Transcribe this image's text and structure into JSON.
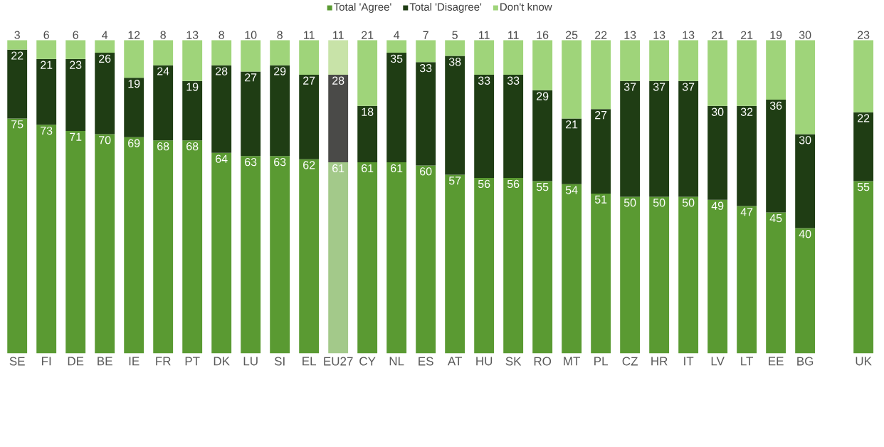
{
  "chart_data": {
    "type": "bar",
    "stacked": true,
    "data_labels": true,
    "legend": "top",
    "categories": [
      "SE",
      "FI",
      "DE",
      "BE",
      "IE",
      "FR",
      "PT",
      "DK",
      "LU",
      "SI",
      "EL",
      "EU27",
      "CY",
      "NL",
      "ES",
      "AT",
      "HU",
      "SK",
      "RO",
      "MT",
      "PL",
      "CZ",
      "HR",
      "IT",
      "LV",
      "LT",
      "EE",
      "BG",
      null,
      "UK"
    ],
    "series": [
      {
        "name": "Total 'Agree'",
        "color": "#5a9a32",
        "colors": [
          "#5a9a32",
          "#5a9a32",
          "#5a9a32",
          "#5a9a32",
          "#5a9a32",
          "#5a9a32",
          "#5a9a32",
          "#5a9a32",
          "#5a9a32",
          "#5a9a32",
          "#5a9a32",
          "#a3c98a",
          "#5a9a32",
          "#5a9a32",
          "#5a9a32",
          "#5a9a32",
          "#5a9a32",
          "#5a9a32",
          "#5a9a32",
          "#5a9a32",
          "#5a9a32",
          "#5a9a32",
          "#5a9a32",
          "#5a9a32",
          "#5a9a32",
          "#5a9a32",
          "#5a9a32",
          "#5a9a32",
          null,
          "#5a9a32"
        ],
        "values": [
          75,
          73,
          71,
          70,
          69,
          68,
          68,
          64,
          63,
          63,
          62,
          61,
          61,
          61,
          60,
          57,
          56,
          56,
          55,
          54,
          51,
          50,
          50,
          50,
          49,
          47,
          45,
          40,
          null,
          55
        ]
      },
      {
        "name": "Total 'Disagree'",
        "color": "#1f3d14",
        "colors": [
          "#1f3d14",
          "#1f3d14",
          "#1f3d14",
          "#1f3d14",
          "#1f3d14",
          "#1f3d14",
          "#1f3d14",
          "#1f3d14",
          "#1f3d14",
          "#1f3d14",
          "#1f3d14",
          "#4a4a48",
          "#1f3d14",
          "#1f3d14",
          "#1f3d14",
          "#1f3d14",
          "#1f3d14",
          "#1f3d14",
          "#1f3d14",
          "#1f3d14",
          "#1f3d14",
          "#1f3d14",
          "#1f3d14",
          "#1f3d14",
          "#1f3d14",
          "#1f3d14",
          "#1f3d14",
          "#1f3d14",
          null,
          "#1f3d14"
        ],
        "values": [
          22,
          21,
          23,
          26,
          19,
          24,
          19,
          28,
          27,
          29,
          27,
          28,
          18,
          35,
          33,
          38,
          33,
          33,
          29,
          21,
          27,
          37,
          37,
          37,
          30,
          32,
          36,
          30,
          null,
          22
        ]
      },
      {
        "name": "Don't know",
        "color": "#9fd47a",
        "colors": [
          "#9fd47a",
          "#9fd47a",
          "#9fd47a",
          "#9fd47a",
          "#9fd47a",
          "#9fd47a",
          "#9fd47a",
          "#9fd47a",
          "#9fd47a",
          "#9fd47a",
          "#9fd47a",
          "#c8e3a8",
          "#9fd47a",
          "#9fd47a",
          "#9fd47a",
          "#9fd47a",
          "#9fd47a",
          "#9fd47a",
          "#9fd47a",
          "#9fd47a",
          "#9fd47a",
          "#9fd47a",
          "#9fd47a",
          "#9fd47a",
          "#9fd47a",
          "#9fd47a",
          "#9fd47a",
          "#9fd47a",
          null,
          "#9fd47a"
        ],
        "values": [
          3,
          6,
          6,
          4,
          12,
          8,
          13,
          8,
          10,
          8,
          11,
          11,
          21,
          4,
          7,
          5,
          11,
          11,
          16,
          25,
          22,
          13,
          13,
          13,
          21,
          21,
          19,
          30,
          null,
          23
        ]
      }
    ]
  }
}
